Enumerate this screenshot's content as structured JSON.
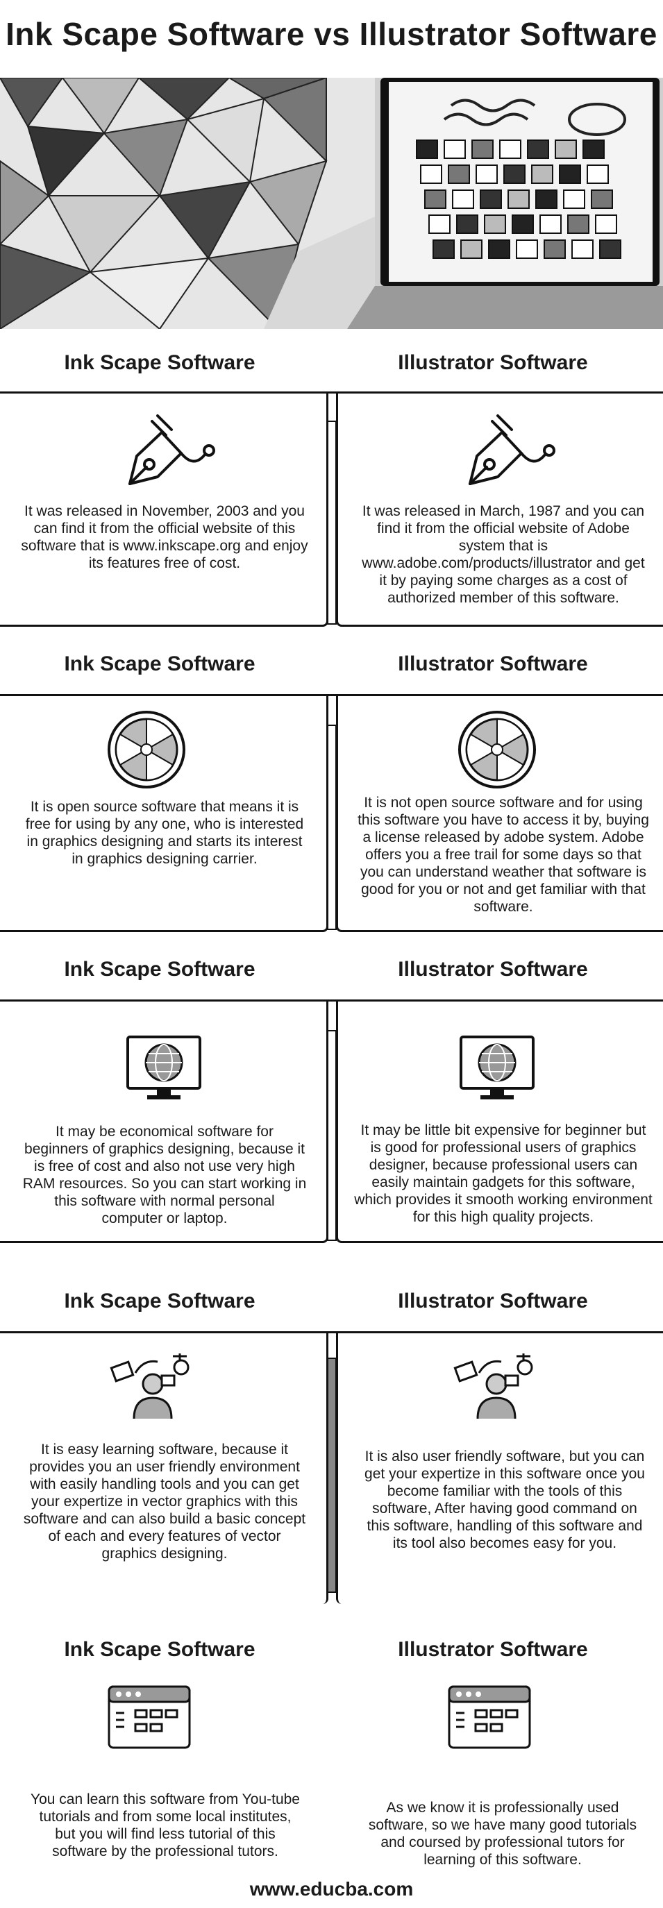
{
  "page": {
    "title": "Ink Scape Software vs Illustrator Software",
    "footer": "www.educba.com"
  },
  "sections": [
    {
      "left": {
        "heading": "Ink Scape Software",
        "icon": "pen-nib-icon",
        "text": "It was released in November, 2003 and you can find it from the official website of this software that is www.inkscape.org and enjoy its features free of cost."
      },
      "right": {
        "heading": "Illustrator Software",
        "icon": "pen-nib-icon",
        "text": "It was released in March, 1987 and you can find it from the official website of Adobe system that is www.adobe.com/products/illustrator and get it by paying some charges as a cost of authorized member of this software."
      }
    },
    {
      "left": {
        "heading": "Ink Scape Software",
        "icon": "aperture-icon",
        "text": "It is open source software that means it is free for using by any one, who is interested in graphics designing and starts its interest in graphics designing carrier."
      },
      "right": {
        "heading": "Illustrator Software",
        "icon": "aperture-icon",
        "text": "It is not open source software and for using this software you have to access it by, buying a license released by adobe system. Adobe offers you a free trail for some days so that you can understand weather that software is good for you or not and get familiar with that software."
      }
    },
    {
      "left": {
        "heading": "Ink Scape Software",
        "icon": "monitor-globe-icon",
        "text": "It may be economical software for beginners of graphics designing, because it is free of cost and also not use very high RAM resources. So you can start working in this software with normal personal computer or laptop."
      },
      "right": {
        "heading": "Illustrator Software",
        "icon": "monitor-globe-icon",
        "text": "It may be little bit expensive for beginner but is good for professional users of graphics designer, because professional users can easily maintain gadgets for this software, which provides it smooth working environment for this high quality projects."
      }
    },
    {
      "left": {
        "heading": "Ink Scape Software",
        "icon": "learning-user-icon",
        "text": "It is easy learning software, because it provides you an user friendly environment with easily handling tools and you can get your expertize in vector graphics with this software and can also build a basic concept of each and every features of vector graphics designing."
      },
      "right": {
        "heading": "Illustrator Software",
        "icon": "learning-user-icon",
        "text": "It is also user friendly software, but you can get your expertize in this software once you become familiar with the tools of this software, After having good command on this software, handling of this software and its tool also becomes easy for you."
      }
    },
    {
      "left": {
        "heading": "Ink Scape Software",
        "icon": "browser-window-icon",
        "text": "You can learn this software from You-tube tutorials and from some local institutes, but you will find less tutorial of this software by the professional tutors."
      },
      "right": {
        "heading": "Illustrator Software",
        "icon": "browser-window-icon",
        "text": "As we know it is professionally used software, so we have many good tutorials and coursed by professional tutors for learning of this software."
      }
    }
  ]
}
